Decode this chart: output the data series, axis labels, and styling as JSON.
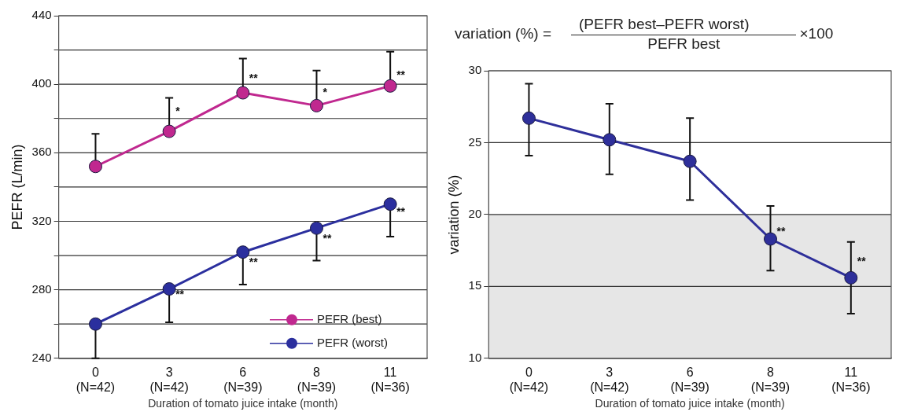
{
  "chart_data": [
    {
      "type": "line",
      "xlabel": "Duration of tomato juice intake (month)",
      "ylabel": "PEFR (L/min)",
      "categories": [
        "0\n(N=42)",
        "3\n(N=42)",
        "6\n(N=39)",
        "8\n(N=39)",
        "11\n(N=36)"
      ],
      "ylim": [
        240,
        440
      ],
      "yticks": [
        240,
        {
          "value": 260,
          "label": null
        },
        280,
        {
          "value": 300,
          "label": null
        },
        320,
        {
          "value": 340,
          "label": null
        },
        360,
        {
          "value": 380,
          "label": null
        },
        400,
        {
          "value": 420,
          "label": null
        },
        440
      ],
      "grid": "y",
      "marker": "circle",
      "legend": "bottom right",
      "series": [
        {
          "name": "PEFR (best)",
          "color": "#c0288f",
          "values": [
            352,
            372.5,
            395,
            387.5,
            399
          ],
          "errors": [
            [
              352,
              371
            ],
            [
              372.5,
              392
            ],
            [
              395,
              415
            ],
            [
              387.5,
              408
            ],
            [
              399,
              419
            ]
          ]
        },
        {
          "name": "PEFR (worst)",
          "color": "#2b2f9e",
          "values": [
            260,
            280.5,
            302,
            316,
            330
          ],
          "errors": [
            [
              240,
              260
            ],
            [
              261,
              280.5
            ],
            [
              283,
              302
            ],
            [
              297,
              316
            ],
            [
              311,
              330
            ]
          ]
        }
      ],
      "annotations": [
        {
          "text": "*",
          "x": "3\n(N=42)",
          "y": 384
        },
        {
          "text": "**",
          "x": "6\n(N=39)",
          "y": 403
        },
        {
          "text": "*",
          "x": "8\n(N=39)",
          "y": 395
        },
        {
          "text": "**",
          "x": "11\n(N=36)",
          "y": 405
        },
        {
          "text": "**",
          "x": "3\n(N=42)",
          "y": 277
        },
        {
          "text": "**",
          "x": "6\n(N=39)",
          "y": 296
        },
        {
          "text": "**",
          "x": "8\n(N=39)",
          "y": 309.5
        },
        {
          "text": "**",
          "x": "11\n(N=36)",
          "y": 325
        }
      ]
    },
    {
      "type": "line",
      "xlabel": "Duration of tomato juice intake (month)",
      "ylabel": "variation (%)",
      "categories": [
        "0\n(N=42)",
        "3\n(N=42)",
        "6\n(N=39)",
        "8\n(N=39)",
        "11\n(N=36)"
      ],
      "ylim": [
        10,
        30
      ],
      "yticks": [
        10,
        15,
        20,
        25,
        30
      ],
      "grid": "y",
      "marker": "circle",
      "bands": [
        {
          "axis": "y",
          "from": 10,
          "to": 20,
          "color": "#e6e6e6"
        }
      ],
      "series": [
        {
          "color": "#2e2f9a",
          "values": [
            26.7,
            25.2,
            23.7,
            18.3,
            15.6
          ],
          "errors": [
            [
              24.1,
              29.1
            ],
            [
              22.8,
              27.7
            ],
            [
              21.0,
              26.7
            ],
            [
              16.1,
              20.6
            ],
            [
              13.1,
              18.1
            ]
          ]
        }
      ],
      "annotations": [
        "variation (%) =",
        "(PEFR best–PEFR worst)",
        "PEFR best",
        "×100",
        {
          "text": "**",
          "x": "8\n(N=39)",
          "y": 18.8
        },
        {
          "text": "**",
          "x": "11\n(N=36)",
          "y": 16.7
        }
      ]
    }
  ]
}
